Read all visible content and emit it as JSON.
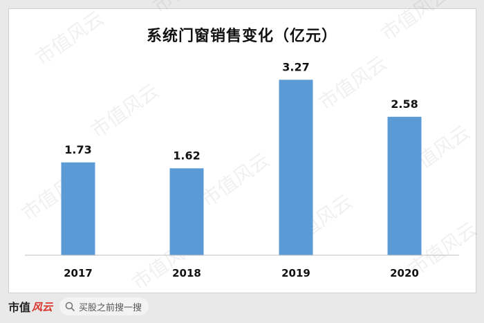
{
  "chart_data": {
    "type": "bar",
    "title": "系统门窗销售变化（亿元）",
    "categories": [
      "2017",
      "2018",
      "2019",
      "2020"
    ],
    "values": [
      1.73,
      1.62,
      3.27,
      2.58
    ],
    "value_labels": [
      "1.73",
      "1.62",
      "3.27",
      "2.58"
    ],
    "ylim": [
      0,
      3.3
    ],
    "grid": false,
    "legend": "none",
    "bar_color": "#5b9bd5"
  },
  "watermark": "市值风云",
  "footer": {
    "logo_text": "市值",
    "logo_icon": "fengyun-brush-logo",
    "search_icon": "search-icon",
    "search_text": "买股之前搜一搜"
  },
  "colors": {
    "background": "#e9e9ea",
    "card": "#ffffff",
    "bar": "#5b9bd5"
  }
}
